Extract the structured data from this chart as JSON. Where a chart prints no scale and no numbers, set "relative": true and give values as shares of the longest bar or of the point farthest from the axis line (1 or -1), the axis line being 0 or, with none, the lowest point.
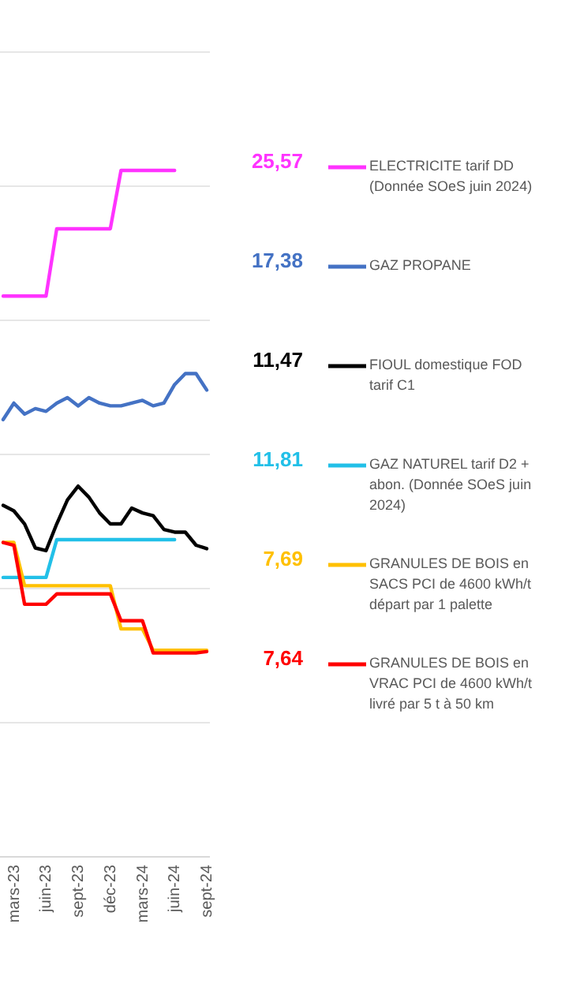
{
  "chart_data": {
    "type": "line",
    "relative": true,
    "categories": [
      null,
      "mars-23",
      null,
      null,
      "juin-23",
      null,
      null,
      "sept-23",
      null,
      null,
      "déc-23",
      null,
      null,
      "mars-24",
      null,
      null,
      "juin-24",
      null,
      null,
      "sept-24"
    ],
    "series": [
      {
        "name": "ELECTRICITE tarif DD (Donnée SOeS juin 2024)",
        "color": "#ff33ff",
        "values": [
          0.817,
          0.817,
          0.817,
          0.817,
          0.817,
          0.915,
          0.915,
          0.915,
          0.915,
          0.915,
          0.915,
          1,
          1,
          1,
          1,
          1,
          1,
          null,
          null,
          null
        ]
      },
      {
        "name": "GAZ PROPANE",
        "color": "#4472c4",
        "values": [
          0.637,
          0.661,
          0.645,
          0.653,
          0.649,
          0.661,
          0.669,
          0.657,
          0.669,
          0.661,
          0.657,
          0.657,
          0.661,
          0.665,
          0.657,
          0.661,
          0.688,
          0.704,
          0.704,
          0.68
        ]
      },
      {
        "name": "FIOUL domestique FOD tarif C1",
        "color": "#000000",
        "values": [
          0.512,
          0.504,
          0.485,
          0.45,
          0.446,
          0.485,
          0.52,
          0.54,
          0.524,
          0.501,
          0.485,
          0.485,
          0.508,
          0.501,
          0.497,
          0.477,
          0.473,
          0.473,
          0.454,
          0.449
        ]
      },
      {
        "name": "GAZ NATUREL tarif D2 + abon. (Donnée SOeS juin 2024)",
        "color": "#22c0e8",
        "values": [
          0.407,
          0.407,
          0.407,
          0.407,
          0.407,
          0.462,
          0.462,
          0.462,
          0.462,
          0.462,
          0.462,
          0.462,
          0.462,
          0.462,
          0.462,
          0.462,
          0.462,
          null,
          null,
          null
        ]
      },
      {
        "name": "GRANULES DE BOIS en SACS PCI de 4600 kWh/t départ par 1 palette",
        "color": "#ffc000",
        "values": [
          0.458,
          0.458,
          0.395,
          0.395,
          0.395,
          0.395,
          0.395,
          0.395,
          0.395,
          0.395,
          0.395,
          0.332,
          0.332,
          0.332,
          0.301,
          0.301,
          0.301,
          0.301,
          0.301,
          0.301
        ]
      },
      {
        "name": "GRANULES DE BOIS en VRAC  PCI de 4600 kWh/t livré par 5 t à 50 km",
        "color": "#ff0000",
        "values": [
          0.458,
          0.454,
          0.368,
          0.368,
          0.368,
          0.383,
          0.383,
          0.383,
          0.383,
          0.383,
          0.383,
          0.344,
          0.344,
          0.344,
          0.297,
          0.297,
          0.297,
          0.297,
          0.297,
          0.299
        ]
      }
    ],
    "annotations": [
      "25,57",
      "17,38",
      "11,47",
      "11,81",
      "7,69",
      "7,64"
    ],
    "tick_labels": "x",
    "grid": "y",
    "legend": "right",
    "marker": "none",
    "line_style": "solid"
  }
}
